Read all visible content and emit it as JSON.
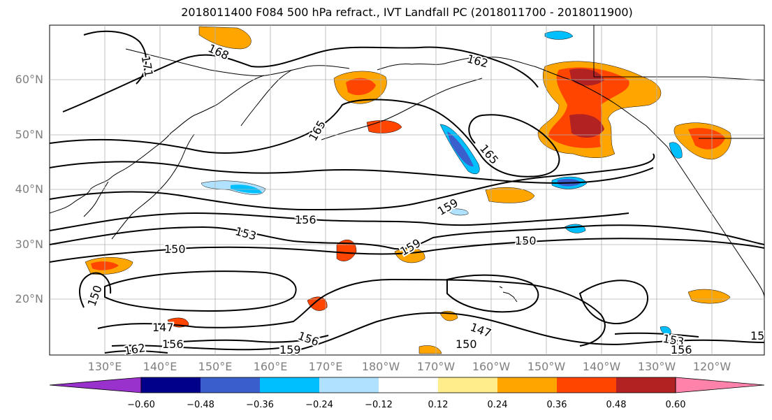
{
  "title": "2018011400 F084 500 hPa refract., IVT Landfall PC (2018011700 - 2018011900)",
  "lat_labels": [
    "60°N",
    "50°N",
    "40°N",
    "30°N",
    "20°N"
  ],
  "lon_labels": [
    "130°E",
    "140°E",
    "150°E",
    "160°E",
    "170°E",
    "180°W",
    "170°W",
    "160°W",
    "150°W",
    "140°W",
    "130°W",
    "120°W"
  ],
  "contour_labels": [
    "171",
    "168",
    "162",
    "165",
    "165",
    "159",
    "156",
    "153",
    "150",
    "159",
    "150",
    "150",
    "147",
    "150",
    "147",
    "156",
    "159",
    "162",
    "156",
    "153",
    "156",
    "15"
  ],
  "colorbar": {
    "ticks": [
      "−0.60",
      "−0.48",
      "−0.36",
      "−0.24",
      "−0.12",
      "0.12",
      "0.24",
      "0.36",
      "0.48",
      "0.60"
    ],
    "colors": [
      "#9932cc",
      "#00008b",
      "#3a5fcd",
      "#00bfff",
      "#b0e2ff",
      "#ffffff",
      "#ffec8b",
      "#ffa500",
      "#ff4500",
      "#b22222",
      "#ff82ab"
    ]
  },
  "colors": {
    "land_outline": "#000000",
    "grid": "#b0b0b0",
    "contour": "#000000"
  }
}
